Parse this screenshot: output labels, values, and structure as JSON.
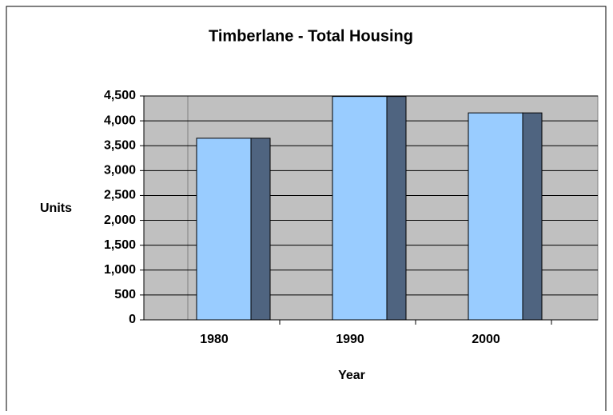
{
  "chart_data": {
    "type": "bar",
    "title": "Timberlane - Total Housing",
    "xlabel": "Year",
    "ylabel": "Units",
    "categories": [
      "1980",
      "1990",
      "2000"
    ],
    "values": [
      3650,
      4490,
      4160
    ],
    "color": "#99ccff",
    "side_color": "#4f6480",
    "ylim": [
      0,
      4500
    ],
    "yticks": [
      0,
      500,
      {
        "value": 1000,
        "label": "1,000"
      },
      {
        "value": 1500,
        "label": "1,500"
      },
      {
        "value": 2000,
        "label": "2,000"
      },
      {
        "value": 2500,
        "label": "2,500"
      },
      {
        "value": 3000,
        "label": "3,000"
      },
      {
        "value": 3500,
        "label": "3,500"
      },
      {
        "value": 4000,
        "label": "4,000"
      },
      {
        "value": 4500,
        "label": "4,500"
      }
    ],
    "grid": true
  }
}
